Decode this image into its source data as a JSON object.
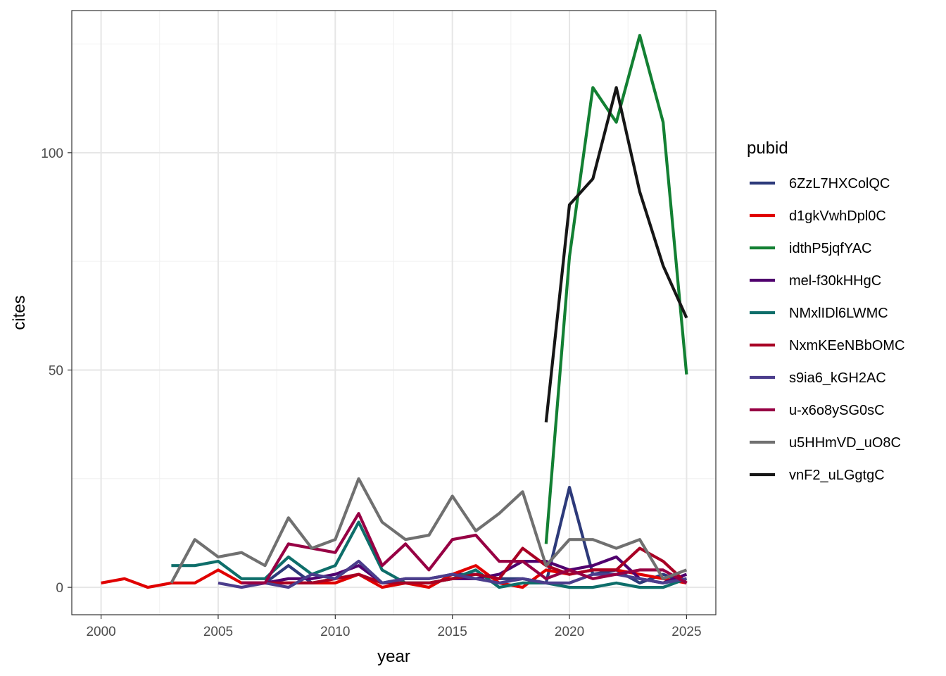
{
  "chart_data": {
    "type": "line",
    "xlabel": "year",
    "ylabel": "cites",
    "xlim": [
      1998.75,
      2026.25
    ],
    "ylim": [
      -6.3,
      132.7
    ],
    "x_ticks": [
      2000,
      2005,
      2010,
      2015,
      2020,
      2025
    ],
    "y_ticks": [
      0,
      50,
      100
    ],
    "grid": true,
    "legend": {
      "title": "pubid",
      "placement": "right"
    },
    "series": [
      {
        "name": "6ZzL7HXColQC",
        "color": "#2D3A7A",
        "x": [
          2006,
          2007,
          2008,
          2009,
          2010,
          2011,
          2012,
          2013,
          2014,
          2015,
          2016,
          2017,
          2018,
          2019,
          2020,
          2021,
          2022,
          2023,
          2024,
          2025
        ],
        "y": [
          1,
          1,
          5,
          1,
          2,
          6,
          1,
          2,
          2,
          3,
          3,
          2,
          2,
          1,
          23,
          3,
          4,
          1,
          3,
          1
        ]
      },
      {
        "name": "d1gkVwhDpl0C",
        "color": "#E00000",
        "x": [
          2000,
          2001,
          2002,
          2003,
          2004,
          2005,
          2006,
          2007,
          2008,
          2009,
          2010,
          2011,
          2012,
          2013,
          2014,
          2015,
          2016,
          2017,
          2018,
          2019,
          2020,
          2021,
          2022,
          2023,
          2024,
          2025
        ],
        "y": [
          1,
          2,
          0,
          1,
          1,
          4,
          1,
          1,
          1,
          1,
          1,
          3,
          0,
          1,
          0,
          3,
          5,
          1,
          0,
          4,
          3,
          4,
          4,
          3,
          2,
          1
        ]
      },
      {
        "name": "idthP5jqfYAC",
        "color": "#138033",
        "x": [
          2019,
          2020,
          2021,
          2022,
          2023,
          2024,
          2025
        ],
        "y": [
          10,
          76,
          115,
          107,
          127,
          107,
          49
        ]
      },
      {
        "name": "mel-f30kHHgC",
        "color": "#50006E",
        "x": [
          2006,
          2007,
          2008,
          2009,
          2010,
          2011,
          2012,
          2013,
          2014,
          2015,
          2016,
          2017,
          2018,
          2019,
          2020,
          2021,
          2022,
          2023,
          2024,
          2025
        ],
        "y": [
          1,
          1,
          2,
          2,
          3,
          5,
          1,
          1,
          1,
          2,
          2,
          3,
          6,
          6,
          4,
          5,
          7,
          2,
          1,
          3
        ]
      },
      {
        "name": "NMxlIDl6LWMC",
        "color": "#0E6E6A",
        "x": [
          2003,
          2004,
          2005,
          2006,
          2007,
          2008,
          2009,
          2010,
          2011,
          2012,
          2013,
          2014,
          2015,
          2016,
          2017,
          2018,
          2019,
          2020,
          2021,
          2022,
          2023,
          2024,
          2025
        ],
        "y": [
          5,
          5,
          6,
          2,
          2,
          7,
          3,
          5,
          15,
          4,
          1,
          1,
          2,
          4,
          0,
          1,
          1,
          0,
          0,
          1,
          0,
          0,
          2
        ]
      },
      {
        "name": "NxmKEeNBbOMC",
        "color": "#A80024",
        "x": [
          2006,
          2007,
          2008,
          2009,
          2010,
          2011,
          2012,
          2013,
          2014,
          2015,
          2016,
          2017,
          2018,
          2019,
          2020,
          2021,
          2022,
          2023,
          2024,
          2025
        ],
        "y": [
          1,
          1,
          1,
          1,
          2,
          3,
          1,
          1,
          1,
          2,
          3,
          2,
          9,
          5,
          3,
          4,
          4,
          9,
          6,
          1
        ]
      },
      {
        "name": "s9ia6_kGH2AC",
        "color": "#4B3D8C",
        "x": [
          2005,
          2006,
          2007,
          2008,
          2009,
          2010,
          2011,
          2012,
          2013,
          2014,
          2015,
          2016,
          2017,
          2018,
          2019,
          2020,
          2021,
          2022,
          2023,
          2024,
          2025
        ],
        "y": [
          1,
          0,
          1,
          0,
          3,
          2,
          6,
          1,
          2,
          2,
          3,
          2,
          1,
          2,
          1,
          1,
          3,
          3,
          2,
          1,
          2
        ]
      },
      {
        "name": "u-x6o8ySG0sC",
        "color": "#970044",
        "x": [
          2006,
          2007,
          2008,
          2009,
          2010,
          2011,
          2012,
          2013,
          2014,
          2015,
          2016,
          2017,
          2018,
          2019,
          2020,
          2021,
          2022,
          2023,
          2024,
          2025
        ],
        "y": [
          1,
          1,
          10,
          9,
          8,
          17,
          5,
          10,
          4,
          11,
          12,
          6,
          6,
          2,
          4,
          2,
          3,
          4,
          4,
          1
        ]
      },
      {
        "name": "u5HHmVD_uO8C",
        "color": "#707070",
        "x": [
          2003,
          2004,
          2005,
          2006,
          2007,
          2008,
          2009,
          2010,
          2011,
          2012,
          2013,
          2014,
          2015,
          2016,
          2017,
          2018,
          2019,
          2020,
          2021,
          2022,
          2023,
          2024,
          2025
        ],
        "y": [
          1,
          11,
          7,
          8,
          5,
          16,
          9,
          11,
          25,
          15,
          11,
          12,
          21,
          13,
          17,
          22,
          5,
          11,
          11,
          9,
          11,
          2,
          4
        ]
      },
      {
        "name": "vnF2_uLGgtgC",
        "color": "#161616",
        "x": [
          2019,
          2020,
          2021,
          2022,
          2023,
          2024,
          2025
        ],
        "y": [
          38,
          88,
          94,
          115,
          91,
          74,
          62
        ]
      }
    ]
  }
}
